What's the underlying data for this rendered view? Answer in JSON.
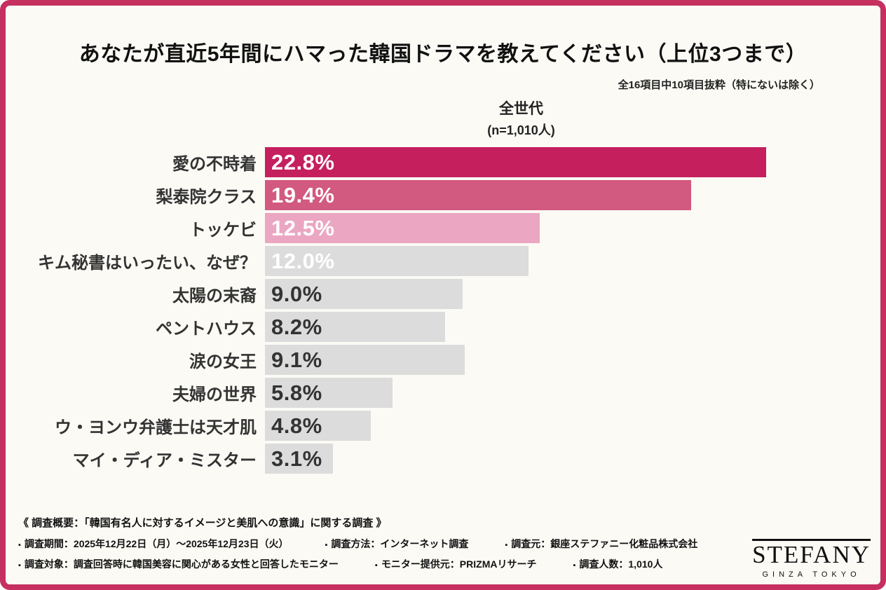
{
  "colors": {
    "frame": "#c53060",
    "card_background": "#fbfaf5",
    "accent_dark": "#c51f5e",
    "accent_mid": "#d25980",
    "accent_light": "#eba6c1",
    "neutral_bar": "#dcdcdc"
  },
  "header": {
    "title": "あなたが直近5年間にハマった韓国ドラマを教えてください（上位3つまで）",
    "note": "全16項目中10項目抜粋（特にないは除く）"
  },
  "chart_data": {
    "type": "bar",
    "orientation": "horizontal",
    "group": {
      "label": "全世代",
      "n_label": "(n=1,010人)"
    },
    "categories": [
      "愛の不時着",
      "梨泰院クラス",
      "トッケビ",
      "キム秘書はいったい、なぜ？",
      "太陽の末裔",
      "ペントハウス",
      "涙の女王",
      "夫婦の世界",
      "ウ・ヨンウ弁護士は天才肌",
      "マイ・ディア・ミスター"
    ],
    "values": [
      22.8,
      19.4,
      12.5,
      12.0,
      9.0,
      8.2,
      9.1,
      5.8,
      4.8,
      3.1
    ],
    "value_labels": [
      "22.8%",
      "19.4%",
      "12.5%",
      "12.0%",
      "9.0%",
      "8.2%",
      "9.1%",
      "5.8%",
      "4.8%",
      "3.1%"
    ],
    "bar_colors": [
      "#c51f5e",
      "#d25980",
      "#eba6c1",
      "#dcdcdc",
      "#dcdcdc",
      "#dcdcdc",
      "#dcdcdc",
      "#dcdcdc",
      "#dcdcdc",
      "#dcdcdc"
    ],
    "value_text_colors": [
      "#ffffff",
      "#ffffff",
      "#ffffff",
      "#ffffff",
      "#333333",
      "#333333",
      "#333333",
      "#333333",
      "#333333",
      "#333333"
    ],
    "axis_max": 22.8,
    "grid": false,
    "legend": false
  },
  "footer": {
    "summary": "《 調査概要：「韓国有名人に対するイメージと美肌への意識」に関する調査 》",
    "bullet": "▪",
    "rows": [
      [
        "調査期間：2025年12月22日（月）～2025年12月23日（火）",
        "調査方法：インターネット調査",
        "調査元：銀座ステファニー化粧品株式会社"
      ],
      [
        "調査対象：調査回答時に韓国美容に関心がある女性と回答したモニター",
        "モニター提供元：PRIZMAリサーチ",
        "調査人数：1,010人"
      ]
    ]
  },
  "logo": {
    "name": "STEFANY",
    "sub": "GINZA TOKYO"
  }
}
